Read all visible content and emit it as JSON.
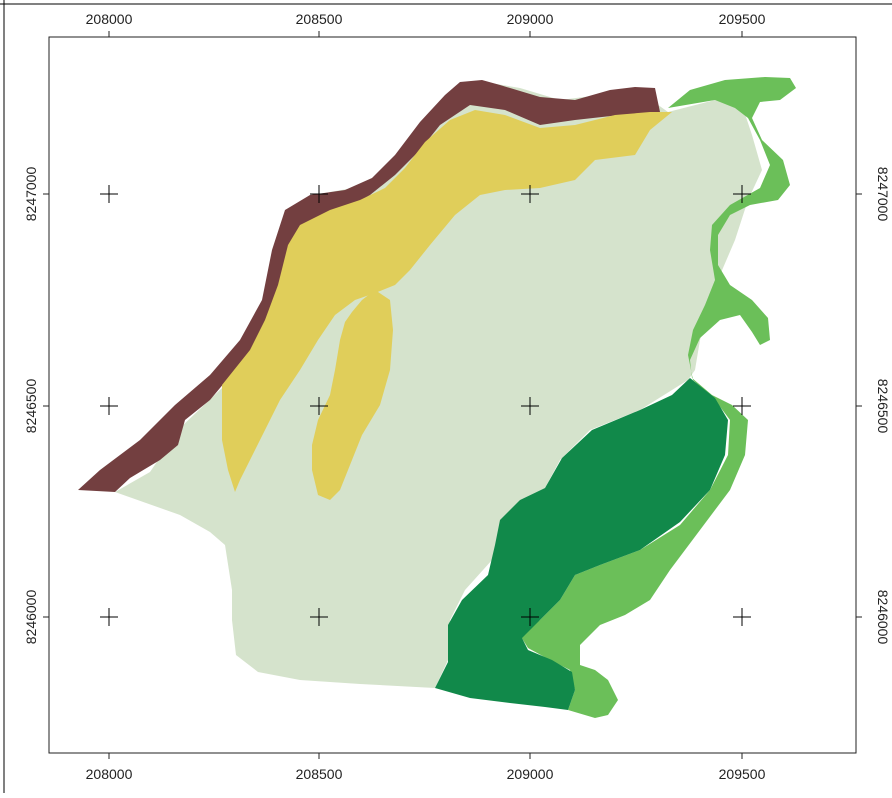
{
  "map": {
    "x_ticks": [
      "208000",
      "208500",
      "209000",
      "209500"
    ],
    "y_ticks": [
      "8247000",
      "8246500",
      "8246000"
    ],
    "colors": {
      "frame": "#ffffff",
      "border": "#222222",
      "light_green": "#d5e3cc",
      "brown": "#733f40",
      "yellow": "#e0ce5a",
      "bright_green": "#6bbf59",
      "dark_green": "#11894a",
      "grid_cross": "#000000"
    },
    "legend": []
  }
}
